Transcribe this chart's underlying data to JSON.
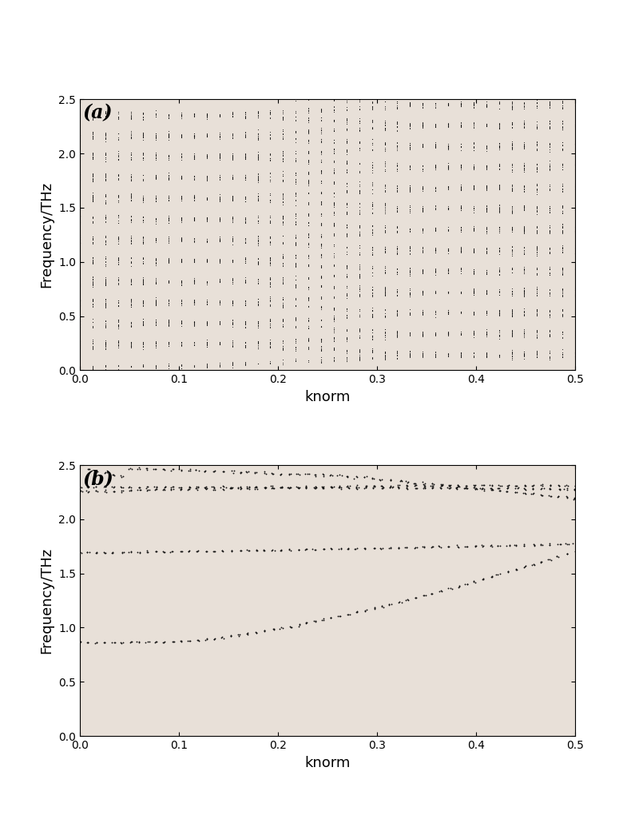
{
  "panel_a_label": "(a)",
  "panel_b_label": "(b)",
  "xlabel": "knorm",
  "ylabel": "Frequency/THz",
  "xlim": [
    0.0,
    0.5
  ],
  "ylim": [
    0.0,
    2.5
  ],
  "bg_color": "#e8e0d8",
  "dot_color": "#111111",
  "label_fontsize": 13,
  "tick_fontsize": 10,
  "xticks": [
    0.0,
    0.1,
    0.2,
    0.3,
    0.4,
    0.5
  ],
  "yticks": [
    0.0,
    0.5,
    1.0,
    1.5,
    2.0,
    2.5
  ]
}
